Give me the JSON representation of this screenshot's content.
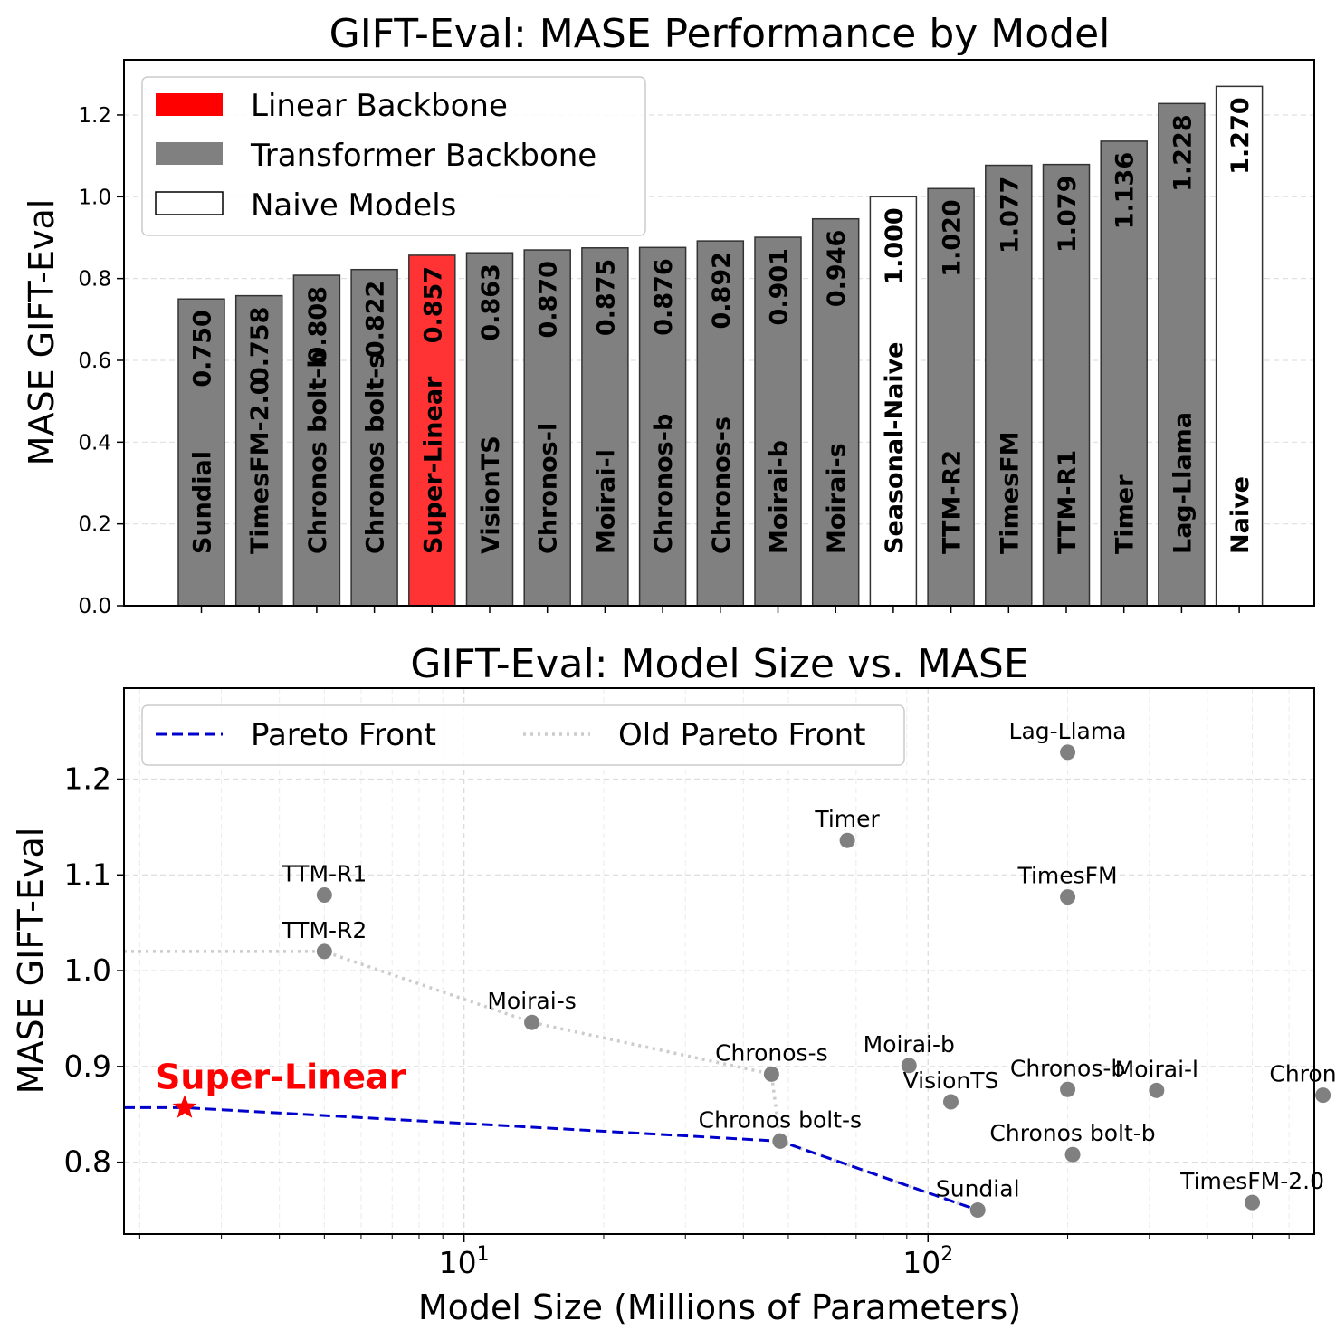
{
  "chart_data": [
    {
      "type": "bar",
      "title": "GIFT-Eval: MASE Performance by Model",
      "xlabel": "",
      "ylabel": "MASE GIFT-Eval",
      "ylim": [
        0,
        1.335
      ],
      "yticks": [
        "0.0",
        "0.2",
        "0.4",
        "0.6",
        "0.8",
        "1.0",
        "1.2"
      ],
      "grid": true,
      "legend": {
        "position": "top-left",
        "entries": [
          {
            "label": "Linear Backbone",
            "color": "#ff0000"
          },
          {
            "label": "Transformer Backbone",
            "color": "#808080"
          },
          {
            "label": "Naive Models",
            "color": "#ffffff"
          }
        ]
      },
      "categories": [
        "Sundial",
        "TimesFM-2.0",
        "Chronos bolt-b",
        "Chronos bolt-s",
        "Super-Linear",
        "VisionTS",
        "Chronos-l",
        "Moirai-l",
        "Chronos-b",
        "Chronos-s",
        "Moirai-b",
        "Moirai-s",
        "Seasonal-Naive",
        "TTM-R2",
        "TimesFM",
        "TTM-R1",
        "Timer",
        "Lag-Llama",
        "Naive"
      ],
      "values": [
        0.75,
        0.758,
        0.808,
        0.822,
        0.857,
        0.863,
        0.87,
        0.875,
        0.876,
        0.892,
        0.901,
        0.946,
        1.0,
        1.02,
        1.077,
        1.079,
        1.136,
        1.228,
        1.27
      ],
      "value_labels": [
        "0.750",
        "0.758",
        "0.808",
        "0.822",
        "0.857",
        "0.863",
        "0.870",
        "0.875",
        "0.876",
        "0.892",
        "0.901",
        "0.946",
        "1.000",
        "1.020",
        "1.077",
        "1.079",
        "1.136",
        "1.228",
        "1.270"
      ],
      "groups": [
        "transformer",
        "transformer",
        "transformer",
        "transformer",
        "linear",
        "transformer",
        "transformer",
        "transformer",
        "transformer",
        "transformer",
        "transformer",
        "transformer",
        "naive",
        "transformer",
        "transformer",
        "transformer",
        "transformer",
        "transformer",
        "naive"
      ]
    },
    {
      "type": "scatter",
      "title": "GIFT-Eval: Model Size vs. MASE",
      "xlabel": "Model Size (Millions of Parameters)",
      "ylabel": "MASE GIFT-Eval",
      "xscale": "log",
      "xlim": [
        1.85,
        680
      ],
      "ylim": [
        0.725,
        1.295
      ],
      "xticks": [
        {
          "value": 10,
          "base": "10",
          "exp": "1"
        },
        {
          "value": 100,
          "base": "10",
          "exp": "2"
        }
      ],
      "yticks": [
        "0.8",
        "0.9",
        "1.0",
        "1.1",
        "1.2"
      ],
      "grid": true,
      "legend": {
        "position": "top-left",
        "entries": [
          {
            "label": "Pareto Front",
            "color": "#0000cc",
            "style": "dashed"
          },
          {
            "label": "Old Pareto Front",
            "color": "#cccccc",
            "style": "dotted"
          }
        ]
      },
      "points": [
        {
          "name": "Lag-Llama",
          "size": 200,
          "mase": 1.228
        },
        {
          "name": "Timer",
          "size": 67,
          "mase": 1.136
        },
        {
          "name": "TimesFM",
          "size": 200,
          "mase": 1.077
        },
        {
          "name": "TTM-R1",
          "size": 5,
          "mase": 1.079
        },
        {
          "name": "TTM-R2",
          "size": 5,
          "mase": 1.02
        },
        {
          "name": "Moirai-s",
          "size": 14,
          "mase": 0.946
        },
        {
          "name": "Moirai-b",
          "size": 91,
          "mase": 0.901
        },
        {
          "name": "Chronos-s",
          "size": 46,
          "mase": 0.892
        },
        {
          "name": "VisionTS",
          "size": 112,
          "mase": 0.863
        },
        {
          "name": "Chronos-b",
          "size": 200,
          "mase": 0.876
        },
        {
          "name": "Moirai-l",
          "size": 311,
          "mase": 0.875
        },
        {
          "name": "Chronos-l",
          "size": 710,
          "mase": 0.87
        },
        {
          "name": "Chronos bolt-s",
          "size": 48,
          "mase": 0.822
        },
        {
          "name": "Chronos bolt-b",
          "size": 205,
          "mase": 0.808
        },
        {
          "name": "Sundial",
          "size": 128,
          "mase": 0.75
        },
        {
          "name": "TimesFM-2.0",
          "size": 500,
          "mase": 0.758
        }
      ],
      "highlight": {
        "name": "Super-Linear",
        "size": 2.5,
        "mase": 0.857,
        "color": "#ff0000"
      },
      "pareto_front": [
        {
          "size": 1.85,
          "mase": 0.857
        },
        {
          "size": 2.5,
          "mase": 0.857
        },
        {
          "size": 48,
          "mase": 0.822
        },
        {
          "size": 128,
          "mase": 0.75
        }
      ],
      "old_pareto_front": [
        {
          "size": 1.85,
          "mase": 1.02
        },
        {
          "size": 5,
          "mase": 1.02
        },
        {
          "size": 14,
          "mase": 0.946
        },
        {
          "size": 46,
          "mase": 0.892
        },
        {
          "size": 48,
          "mase": 0.822
        },
        {
          "size": 128,
          "mase": 0.75
        }
      ]
    }
  ]
}
